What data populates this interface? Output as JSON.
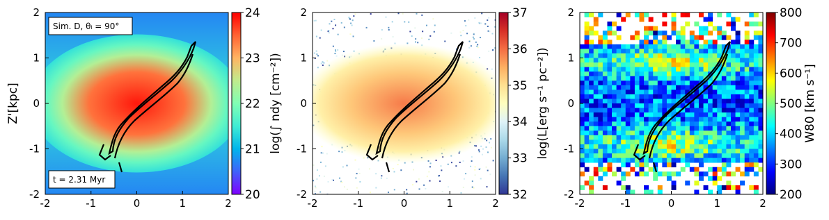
{
  "chart_data": [
    {
      "type": "image",
      "colormap": "rainbow",
      "xlim": [
        -2,
        2
      ],
      "ylim": [
        -2,
        2
      ],
      "xticks": [
        -2,
        -1,
        0,
        1,
        2
      ],
      "yticks": [
        -2,
        -1,
        0,
        1,
        2
      ],
      "ylabel": "Z'[kpc]",
      "colorbar": {
        "label": "log(∫ ndy [cm⁻²])",
        "lim": [
          20,
          24
        ],
        "ticks": [
          20,
          21,
          22,
          23,
          24
        ]
      },
      "annotations": [
        "Sim.  D, θₗ = 90°",
        "t = 2.31 Myr"
      ]
    },
    {
      "type": "image",
      "colormap": "RdYlBu_r",
      "xlim": [
        -2,
        2
      ],
      "ylim": [
        -2,
        2
      ],
      "xticks": [
        -2,
        -1,
        0,
        1,
        2
      ],
      "yticks": [
        -2,
        -1,
        0,
        1,
        2
      ],
      "colorbar": {
        "label": "log(L[erg s⁻¹ pc⁻²])",
        "lim": [
          32,
          37
        ],
        "ticks": [
          32,
          33,
          34,
          35,
          36,
          37
        ]
      }
    },
    {
      "type": "image",
      "colormap": "jet",
      "xlim": [
        -2,
        2
      ],
      "ylim": [
        -2,
        2
      ],
      "xticks": [
        -2,
        -1,
        0,
        1,
        2
      ],
      "yticks": [
        -2,
        -1,
        0,
        1,
        2
      ],
      "colorbar": {
        "label": "W80 [km s⁻¹]",
        "lim": [
          200,
          800
        ],
        "ticks": [
          200,
          300,
          400,
          500,
          600,
          700,
          800
        ]
      }
    }
  ]
}
